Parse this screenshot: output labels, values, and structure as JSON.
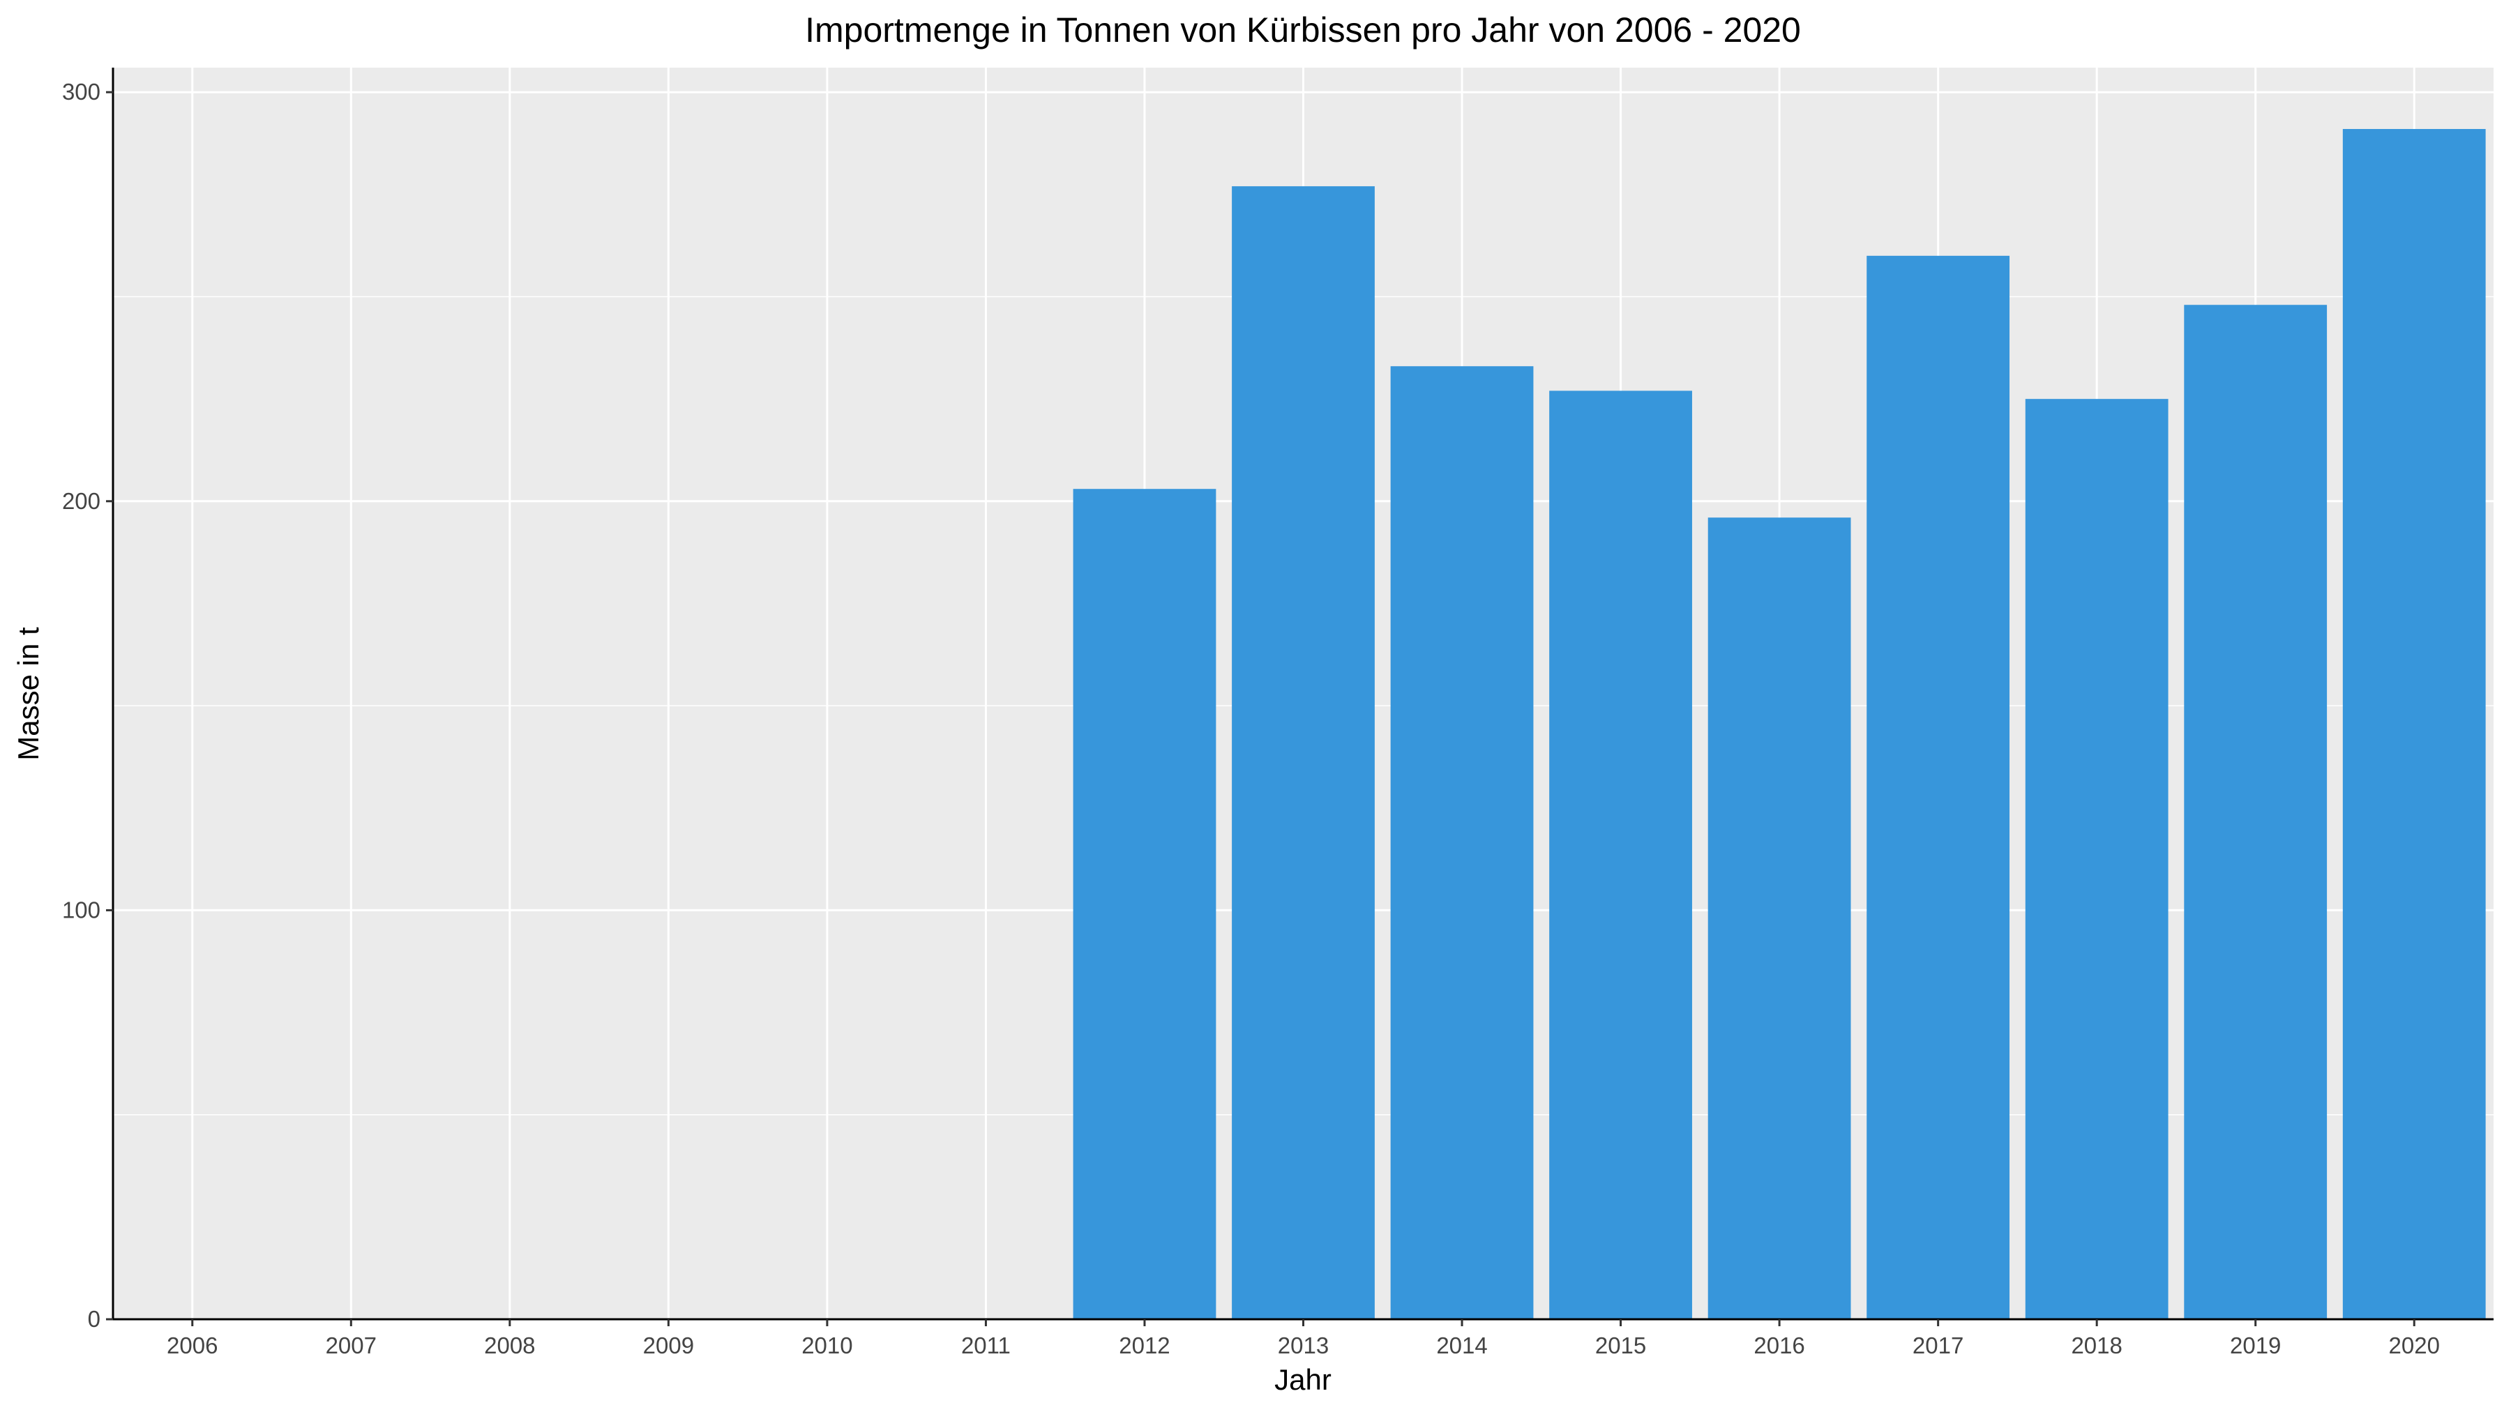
{
  "chart_data": {
    "type": "bar",
    "title": "Importmenge in Tonnen von Kürbissen pro Jahr von 2006 - 2020",
    "xlabel": "Jahr",
    "ylabel": "Masse in t",
    "categories": [
      "2006",
      "2007",
      "2008",
      "2009",
      "2010",
      "2011",
      "2012",
      "2013",
      "2014",
      "2015",
      "2016",
      "2017",
      "2018",
      "2019",
      "2020"
    ],
    "values": [
      null,
      null,
      null,
      null,
      null,
      null,
      203,
      277,
      233,
      227,
      196,
      260,
      225,
      248,
      291
    ],
    "ylim": [
      0,
      306
    ],
    "yticks": [
      0,
      100,
      200,
      300
    ],
    "ytick_labels": [
      "0",
      "100",
      "200",
      "300"
    ],
    "grid": true,
    "legend": "none",
    "colors": {
      "bar": "#3796db",
      "panel": "#ebebeb",
      "grid": "#ffffff"
    }
  }
}
